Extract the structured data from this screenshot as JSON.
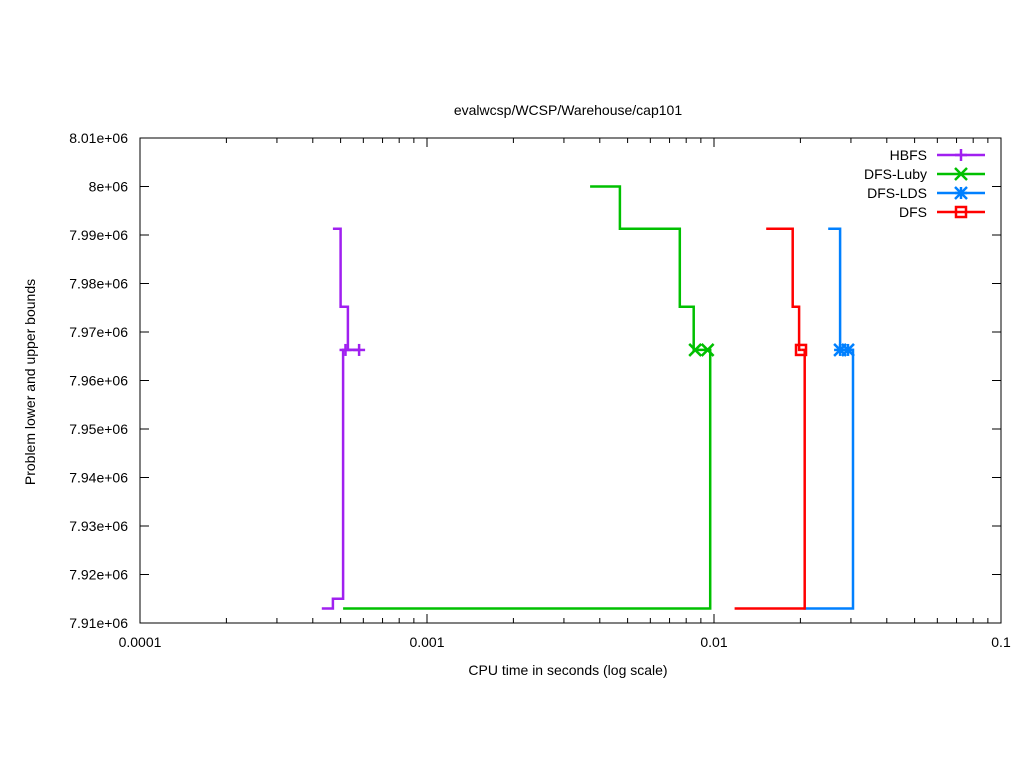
{
  "chart_data": {
    "type": "line",
    "title": "evalwcsp/WCSP/Warehouse/cap101",
    "xlabel": "CPU time in seconds (log scale)",
    "ylabel": "Problem lower and upper bounds",
    "xscale": "log",
    "xlim": [
      0.0001,
      0.1
    ],
    "ylim": [
      7910000,
      8010000
    ],
    "x_ticks": [
      {
        "value": 0.0001,
        "label": "0.0001"
      },
      {
        "value": 0.001,
        "label": "0.001"
      },
      {
        "value": 0.01,
        "label": "0.01"
      },
      {
        "value": 0.1,
        "label": "0.1"
      }
    ],
    "y_ticks": [
      {
        "value": 7910000,
        "label": "7.91e+06"
      },
      {
        "value": 7920000,
        "label": "7.92e+06"
      },
      {
        "value": 7930000,
        "label": "7.93e+06"
      },
      {
        "value": 7940000,
        "label": "7.94e+06"
      },
      {
        "value": 7950000,
        "label": "7.95e+06"
      },
      {
        "value": 7960000,
        "label": "7.96e+06"
      },
      {
        "value": 7970000,
        "label": "7.97e+06"
      },
      {
        "value": 7980000,
        "label": "7.98e+06"
      },
      {
        "value": 7990000,
        "label": "7.99e+06"
      },
      {
        "value": 8000000,
        "label": "8e+06"
      },
      {
        "value": 8010000,
        "label": "8.01e+06"
      }
    ],
    "grid": false,
    "legend_position": "top-right",
    "series": [
      {
        "name": "HBFS",
        "color": "#a020f0",
        "marker": "plus",
        "upper": [
          [
            0.00047,
            7991300
          ],
          [
            0.0005,
            7991300
          ],
          [
            0.0005,
            7975200
          ],
          [
            0.00053,
            7975200
          ],
          [
            0.00053,
            7966300
          ],
          [
            0.00058,
            7966300
          ]
        ],
        "lower": [
          [
            0.00043,
            7913000
          ],
          [
            0.00047,
            7913000
          ],
          [
            0.00047,
            7915000
          ],
          [
            0.00051,
            7915000
          ],
          [
            0.00051,
            7966300
          ],
          [
            0.00058,
            7966300
          ]
        ],
        "points": [
          [
            0.00052,
            7966300
          ],
          [
            0.00058,
            7966300
          ]
        ]
      },
      {
        "name": "DFS-Luby",
        "color": "#00c000",
        "marker": "x",
        "upper": [
          [
            0.0037,
            8000000
          ],
          [
            0.0047,
            8000000
          ],
          [
            0.0047,
            7991300
          ],
          [
            0.0076,
            7991300
          ],
          [
            0.0076,
            7975200
          ],
          [
            0.0085,
            7975200
          ],
          [
            0.0085,
            7966300
          ],
          [
            0.0095,
            7966300
          ]
        ],
        "lower": [
          [
            0.00051,
            7913000
          ],
          [
            0.0097,
            7913000
          ],
          [
            0.0097,
            7966300
          ],
          [
            0.0095,
            7966300
          ]
        ],
        "points": [
          [
            0.0086,
            7966300
          ],
          [
            0.0095,
            7966300
          ]
        ]
      },
      {
        "name": "DFS-LDS",
        "color": "#0080ff",
        "marker": "star",
        "upper": [
          [
            0.025,
            7991300
          ],
          [
            0.0275,
            7991300
          ],
          [
            0.0275,
            7966300
          ],
          [
            0.0293,
            7966300
          ]
        ],
        "lower": [
          [
            0.0205,
            7913000
          ],
          [
            0.0305,
            7913000
          ],
          [
            0.0305,
            7966300
          ],
          [
            0.0293,
            7966300
          ]
        ],
        "points": [
          [
            0.0275,
            7966300
          ],
          [
            0.0293,
            7966300
          ]
        ]
      },
      {
        "name": "DFS",
        "color": "#ff0000",
        "marker": "square",
        "upper": [
          [
            0.0152,
            7991300
          ],
          [
            0.0188,
            7991300
          ],
          [
            0.0188,
            7975200
          ],
          [
            0.0198,
            7975200
          ],
          [
            0.0198,
            7966300
          ],
          [
            0.0202,
            7966300
          ]
        ],
        "lower": [
          [
            0.0118,
            7913000
          ],
          [
            0.0207,
            7913000
          ],
          [
            0.0207,
            7966300
          ],
          [
            0.0202,
            7966300
          ]
        ],
        "points": [
          [
            0.0201,
            7966300
          ]
        ]
      }
    ]
  }
}
